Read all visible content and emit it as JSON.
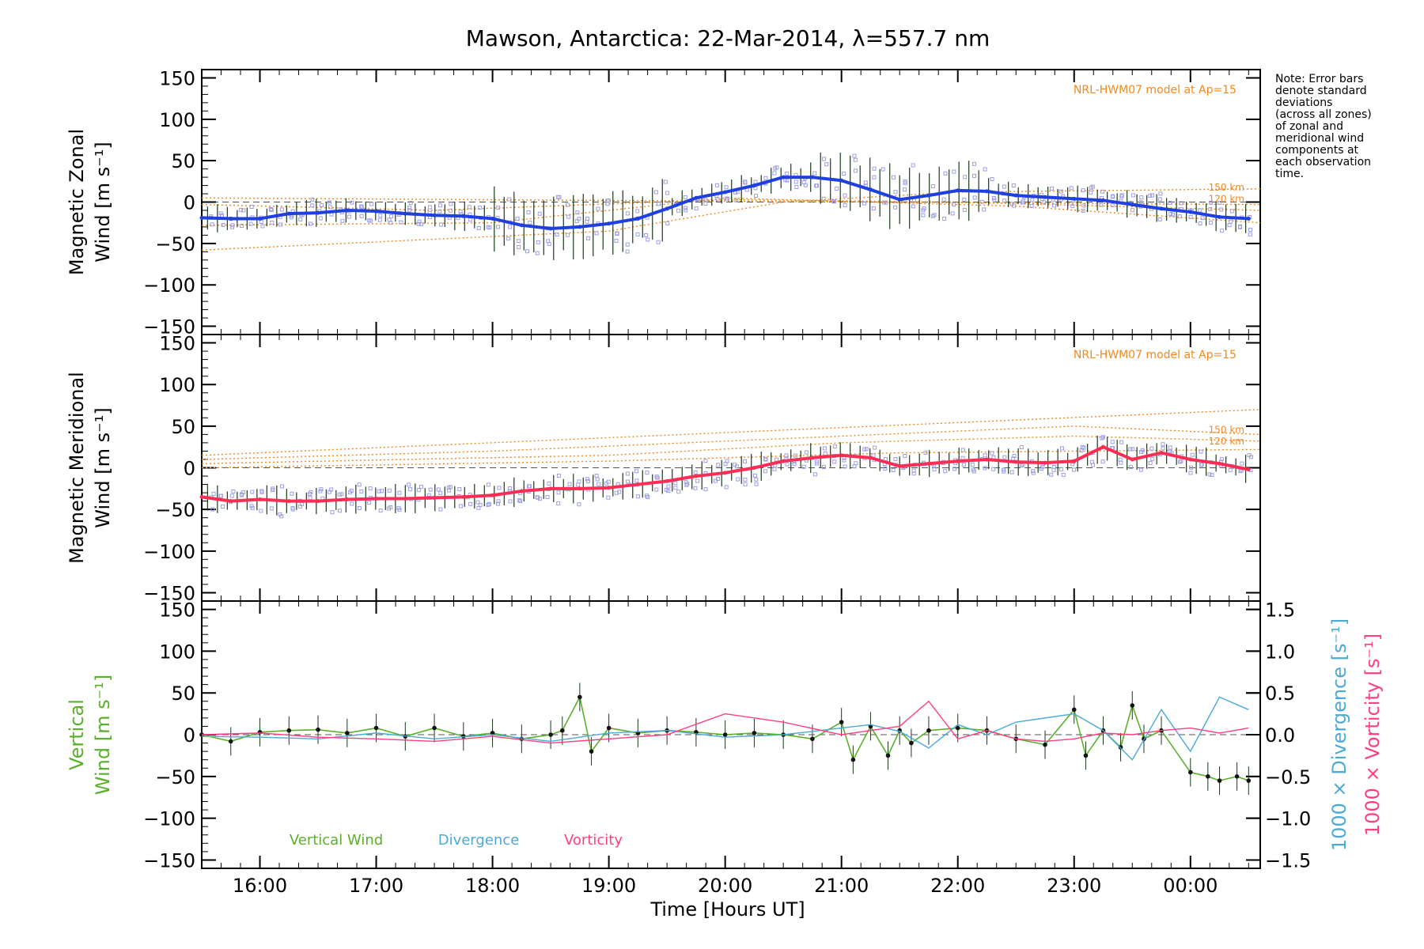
{
  "colors": {
    "zonal": "#1f3fe0",
    "meridional": "#ff2d55",
    "model": "#f08a1e",
    "zone_points": "#9f9fe6",
    "vertical": "#5ab02a",
    "divergence": "#4aaad8",
    "vorticity": "#ff3f80",
    "errorbar": "#1a3a1a",
    "axis": "#000000"
  },
  "chart_data": {
    "type": "line",
    "title": "Mawson, Antarctica: 22-Mar-2014, λ=557.7 nm",
    "xlabel": "Time [Hours UT]",
    "x_unit": "hours UT (values past 24 wrap to next day)",
    "x_ticks": [
      {
        "value": 16,
        "label": "16:00"
      },
      {
        "value": 17,
        "label": "17:00"
      },
      {
        "value": 18,
        "label": "18:00"
      },
      {
        "value": 19,
        "label": "19:00"
      },
      {
        "value": 20,
        "label": "20:00"
      },
      {
        "value": 21,
        "label": "21:00"
      },
      {
        "value": 22,
        "label": "22:00"
      },
      {
        "value": 23,
        "label": "23:00"
      },
      {
        "value": 24,
        "label": "00:00"
      }
    ],
    "xlim": [
      15.5,
      24.6
    ],
    "note_lines": [
      "Note: Error bars",
      "denote standard",
      "deviations",
      "(across all zones)",
      "of zonal and",
      "meridional wind",
      "components at",
      "each observation",
      "time."
    ],
    "panels": [
      {
        "id": "zonal",
        "ylabel_lines": [
          "Magnetic Zonal",
          "Wind [m s⁻¹]"
        ],
        "ylim": [
          -160,
          160
        ],
        "y_ticks": [
          150,
          100,
          50,
          0,
          -50,
          -100,
          -150
        ],
        "model_label": "NRL-HWM07 model at Ap=15",
        "model_altitude_labels": [
          "150 km",
          "120 km"
        ],
        "series": [
          {
            "name": "Magnetic Zonal Wind",
            "color_key": "zonal",
            "x": [
              15.5,
              15.75,
              16.0,
              16.25,
              16.5,
              16.75,
              17.0,
              17.25,
              17.5,
              17.75,
              18.0,
              18.25,
              18.5,
              18.75,
              19.0,
              19.25,
              19.5,
              19.75,
              20.0,
              20.25,
              20.5,
              20.75,
              21.0,
              21.25,
              21.5,
              21.75,
              22.0,
              22.25,
              22.5,
              22.75,
              23.0,
              23.25,
              23.5,
              23.75,
              24.0,
              24.25,
              24.5
            ],
            "y": [
              -19,
              -20,
              -20,
              -14,
              -13,
              -10,
              -11,
              -14,
              -16,
              -17,
              -20,
              -28,
              -32,
              -30,
              -26,
              -20,
              -8,
              5,
              12,
              20,
              30,
              30,
              26,
              15,
              3,
              8,
              14,
              13,
              8,
              6,
              4,
              2,
              -3,
              -8,
              -12,
              -18,
              -20
            ]
          }
        ],
        "models": [
          {
            "x": [
              15.5,
              24.6
            ],
            "y": [
              5,
              -3
            ]
          },
          {
            "x": [
              15.5,
              17.5,
              20.0,
              22.0,
              24.6
            ],
            "y": [
              -3,
              -10,
              3,
              0,
              -10
            ]
          },
          {
            "x": [
              15.5,
              18.0,
              20.0,
              22.5,
              24.6
            ],
            "y": [
              -28,
              -25,
              5,
              -5,
              -25
            ]
          },
          {
            "x": [
              15.5,
              19.0,
              20.5,
              22.0,
              24.6
            ],
            "y": [
              -58,
              -35,
              0,
              12,
              16
            ]
          }
        ]
      },
      {
        "id": "meridional",
        "ylabel_lines": [
          "Magnetic Meridional",
          "Wind [m s⁻¹]"
        ],
        "ylim": [
          -160,
          160
        ],
        "y_ticks": [
          150,
          100,
          50,
          0,
          -50,
          -100,
          -150
        ],
        "model_label": "NRL-HWM07 model at Ap=15",
        "model_altitude_labels": [
          "150 km",
          "120 km"
        ],
        "series": [
          {
            "name": "Magnetic Meridional Wind",
            "color_key": "meridional",
            "x": [
              15.5,
              15.75,
              16.0,
              16.25,
              16.5,
              16.75,
              17.0,
              17.25,
              17.5,
              17.75,
              18.0,
              18.25,
              18.5,
              18.75,
              19.0,
              19.25,
              19.5,
              19.75,
              20.0,
              20.25,
              20.5,
              20.75,
              21.0,
              21.25,
              21.5,
              21.75,
              22.0,
              22.25,
              22.5,
              22.75,
              23.0,
              23.25,
              23.5,
              23.75,
              24.0,
              24.25,
              24.5
            ],
            "y": [
              -35,
              -40,
              -38,
              -40,
              -40,
              -38,
              -37,
              -37,
              -36,
              -35,
              -33,
              -28,
              -25,
              -25,
              -24,
              -20,
              -16,
              -10,
              -6,
              0,
              8,
              12,
              15,
              12,
              2,
              5,
              8,
              10,
              7,
              6,
              8,
              25,
              10,
              18,
              10,
              5,
              -2
            ]
          }
        ],
        "models": [
          {
            "x": [
              15.5,
              24.6
            ],
            "y": [
              15,
              70
            ]
          },
          {
            "x": [
              15.5,
              18.0,
              20.5,
              23.0,
              24.6
            ],
            "y": [
              10,
              20,
              35,
              50,
              40
            ]
          },
          {
            "x": [
              15.5,
              19.0,
              21.0,
              23.0,
              24.6
            ],
            "y": [
              5,
              15,
              30,
              38,
              32
            ]
          },
          {
            "x": [
              15.5,
              19.0,
              21.5,
              24.6
            ],
            "y": [
              0,
              8,
              18,
              22
            ]
          }
        ]
      },
      {
        "id": "vertical",
        "ylabel_lines": [
          "Vertical",
          "Wind [m s⁻¹]"
        ],
        "ylim": [
          -160,
          160
        ],
        "y_ticks": [
          150,
          100,
          50,
          0,
          -50,
          -100,
          -150
        ],
        "right_axis": {
          "ylim": [
            -1.6,
            1.6
          ],
          "ticks": [
            1.5,
            1.0,
            0.5,
            0.0,
            -0.5,
            -1.0,
            -1.5
          ],
          "labels": [
            "1000 × Divergence [s⁻¹]",
            "1000 × Vorticity [s⁻¹]"
          ]
        },
        "legend": [
          "Vertical Wind",
          "Divergence",
          "Vorticity"
        ],
        "series": [
          {
            "name": "Vertical Wind",
            "color_key": "vertical",
            "axis": "left",
            "x": [
              15.5,
              15.75,
              16.0,
              16.25,
              16.5,
              16.75,
              17.0,
              17.25,
              17.5,
              17.75,
              18.0,
              18.25,
              18.5,
              18.6,
              18.75,
              18.85,
              19.0,
              19.25,
              19.5,
              19.75,
              20.0,
              20.25,
              20.5,
              20.75,
              21.0,
              21.1,
              21.25,
              21.4,
              21.5,
              21.6,
              21.75,
              22.0,
              22.25,
              22.5,
              22.75,
              23.0,
              23.1,
              23.25,
              23.4,
              23.5,
              23.6,
              23.75,
              24.0,
              24.15,
              24.25,
              24.4,
              24.5
            ],
            "y": [
              0,
              -8,
              3,
              5,
              6,
              2,
              8,
              -2,
              8,
              -2,
              2,
              -5,
              0,
              5,
              45,
              -20,
              8,
              2,
              5,
              3,
              0,
              2,
              0,
              -5,
              15,
              -30,
              10,
              -25,
              5,
              -10,
              5,
              8,
              5,
              -5,
              -12,
              30,
              -25,
              5,
              -15,
              35,
              -5,
              5,
              -45,
              -50,
              -55,
              -50,
              -55
            ]
          },
          {
            "name": "Divergence",
            "color_key": "divergence",
            "axis": "right",
            "x": [
              15.5,
              16.0,
              16.5,
              17.0,
              17.5,
              18.0,
              18.5,
              19.0,
              19.5,
              20.0,
              20.5,
              21.0,
              21.25,
              21.5,
              21.75,
              22.0,
              22.25,
              22.5,
              22.75,
              23.0,
              23.25,
              23.5,
              23.75,
              24.0,
              24.25,
              24.5
            ],
            "y": [
              -0.02,
              -0.03,
              -0.05,
              0.02,
              -0.05,
              0.0,
              -0.08,
              0.02,
              0.05,
              -0.03,
              0.0,
              0.08,
              0.12,
              0.04,
              -0.16,
              0.12,
              0.0,
              0.15,
              0.2,
              0.25,
              0.05,
              -0.3,
              0.3,
              -0.2,
              0.45,
              0.3
            ]
          },
          {
            "name": "Vorticity",
            "color_key": "vorticity",
            "axis": "right",
            "x": [
              15.5,
              16.0,
              16.5,
              17.0,
              17.5,
              18.0,
              18.5,
              19.0,
              19.5,
              20.0,
              20.5,
              21.0,
              21.25,
              21.5,
              21.75,
              22.0,
              22.25,
              22.5,
              22.75,
              23.0,
              23.25,
              23.5,
              23.75,
              24.0,
              24.25,
              24.5
            ],
            "y": [
              0.0,
              0.02,
              -0.03,
              -0.05,
              -0.08,
              -0.02,
              -0.1,
              -0.05,
              0.0,
              0.25,
              0.15,
              0.0,
              0.05,
              0.1,
              0.4,
              -0.05,
              0.05,
              -0.05,
              -0.08,
              -0.05,
              0.02,
              0.0,
              0.05,
              0.08,
              0.02,
              0.08
            ]
          }
        ]
      }
    ]
  }
}
